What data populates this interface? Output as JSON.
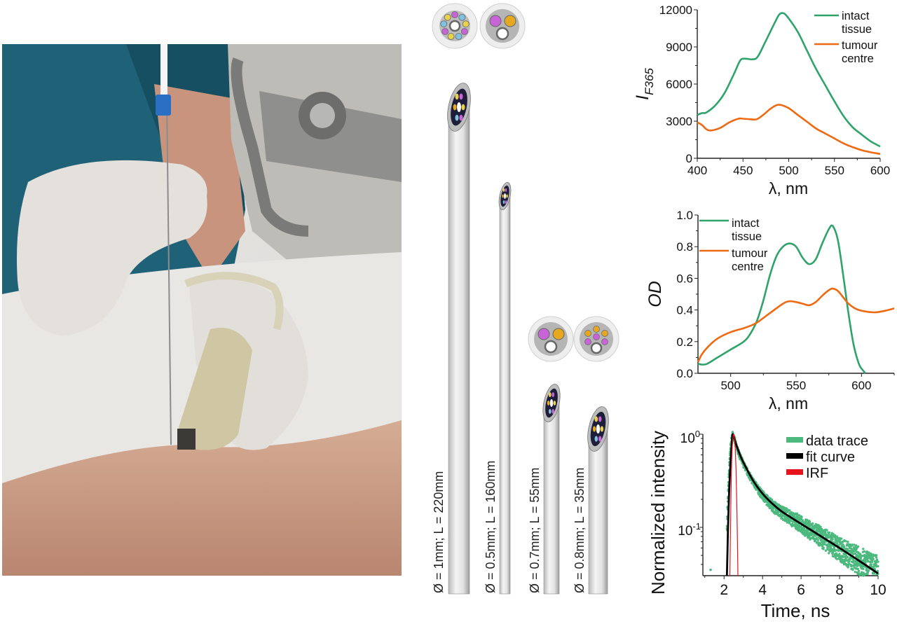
{
  "photo": {
    "description_icon": "clinical-photo"
  },
  "needles": {
    "items": [
      {
        "label": "Ø = 1mm; L = 220mm"
      },
      {
        "label": "Ø = 0.5mm; L = 160mm"
      },
      {
        "label": "Ø = 0.7mm; L = 55mm"
      },
      {
        "label": "Ø = 0.8mm; L = 35mm"
      }
    ],
    "colors": {
      "violet": "#c964d8",
      "yellow": "#e8d24a",
      "blue": "#7fc3de",
      "orange": "#e6a81e",
      "core": "#8e8e8e"
    }
  },
  "chart_data": [
    {
      "type": "line",
      "xlabel": "λ, nm",
      "ylabel": "I",
      "ylabel_subscript": "F365",
      "xlim": [
        400,
        600
      ],
      "ylim": [
        0,
        12000
      ],
      "xticks": [
        "400",
        "450",
        "500",
        "550",
        "600"
      ],
      "yticks": [
        "0",
        "3000",
        "6000",
        "9000",
        "12000"
      ],
      "grid": false,
      "legend": "top-right",
      "series": [
        {
          "name_lines": [
            "intact",
            "tissue"
          ],
          "color": "#2ea36a",
          "x": [
            400,
            405,
            410,
            420,
            430,
            440,
            447,
            452,
            460,
            466,
            475,
            485,
            490,
            495,
            500,
            510,
            520,
            530,
            540,
            550,
            560,
            570,
            580,
            590,
            600
          ],
          "y": [
            3500,
            3650,
            3700,
            4300,
            5300,
            6800,
            7900,
            8050,
            8000,
            8200,
            9500,
            11000,
            11650,
            11700,
            11300,
            10200,
            8700,
            7200,
            5900,
            4600,
            3400,
            2500,
            1900,
            1350,
            950
          ]
        },
        {
          "name_lines": [
            "tumour",
            "centre"
          ],
          "color": "#ee6a12",
          "x": [
            400,
            405,
            410,
            415,
            425,
            435,
            445,
            450,
            458,
            465,
            472,
            480,
            487,
            492,
            500,
            510,
            520,
            530,
            540,
            550,
            560,
            570,
            580,
            590,
            600
          ],
          "y": [
            2900,
            2700,
            2350,
            2250,
            2450,
            2900,
            3200,
            3200,
            3150,
            3150,
            3500,
            4000,
            4300,
            4300,
            4050,
            3500,
            2950,
            2400,
            2000,
            1600,
            1200,
            900,
            650,
            480,
            350
          ]
        }
      ]
    },
    {
      "type": "line",
      "xlabel": "λ, nm",
      "ylabel": "OD",
      "xlim": [
        475,
        625
      ],
      "ylim": [
        0,
        1.0
      ],
      "xticks": [
        "500",
        "550",
        "600"
      ],
      "yticks": [
        "0.0",
        "0.2",
        "0.4",
        "0.6",
        "0.8",
        "1.0"
      ],
      "grid": false,
      "legend": "top-left",
      "series": [
        {
          "name_lines": [
            "intact",
            "tissue"
          ],
          "color": "#2ea36a",
          "x": [
            475,
            478,
            482,
            490,
            500,
            510,
            515,
            520,
            525,
            530,
            535,
            540,
            545,
            550,
            555,
            560,
            565,
            570,
            575,
            578,
            582,
            586,
            590,
            594,
            598,
            601,
            603
          ],
          "y": [
            0.06,
            0.055,
            0.06,
            0.1,
            0.15,
            0.2,
            0.25,
            0.33,
            0.46,
            0.62,
            0.74,
            0.8,
            0.82,
            0.8,
            0.73,
            0.69,
            0.72,
            0.82,
            0.91,
            0.93,
            0.84,
            0.62,
            0.38,
            0.18,
            0.06,
            0.02,
            0.0
          ]
        },
        {
          "name_lines": [
            "tumour",
            "centre"
          ],
          "color": "#ee6a12",
          "x": [
            475,
            478,
            483,
            490,
            500,
            510,
            515,
            520,
            530,
            540,
            545,
            550,
            555,
            560,
            565,
            570,
            575,
            578,
            582,
            586,
            590,
            595,
            600,
            610,
            618,
            625
          ],
          "y": [
            0.07,
            0.12,
            0.17,
            0.22,
            0.26,
            0.285,
            0.3,
            0.32,
            0.38,
            0.44,
            0.455,
            0.45,
            0.44,
            0.43,
            0.45,
            0.49,
            0.525,
            0.535,
            0.52,
            0.48,
            0.44,
            0.41,
            0.395,
            0.385,
            0.395,
            0.41
          ]
        }
      ]
    },
    {
      "type": "scatter",
      "xlabel": "Time, ns",
      "ylabel": "Normalized intensity",
      "xlim": [
        0.9,
        10
      ],
      "ylim": [
        0.03,
        1.0
      ],
      "yscale": "log",
      "xticks": [
        "2",
        "4",
        "6",
        "8",
        "10"
      ],
      "yticks": [
        {
          "base": "10",
          "exp": "0"
        },
        {
          "base": "10",
          "exp": "-1"
        }
      ],
      "grid": false,
      "legend": "top-right",
      "series": [
        {
          "name": "data trace",
          "color": "#4cb97e",
          "kind": "scatter",
          "x": [
            1.3,
            2.15,
            2.2,
            2.25,
            2.3,
            2.35,
            2.4,
            2.45,
            2.5,
            2.6,
            2.7,
            2.8,
            3.0,
            3.2,
            3.5,
            3.8,
            4.0,
            4.3,
            4.6,
            5.0,
            5.4,
            5.8,
            6.2,
            6.6,
            7.0,
            7.5,
            8.0,
            8.5,
            9.0,
            9.5,
            10.0
          ],
          "y": [
            0.035,
            0.1,
            0.2,
            0.35,
            0.55,
            0.75,
            0.9,
            1.0,
            0.95,
            0.78,
            0.68,
            0.6,
            0.48,
            0.4,
            0.31,
            0.25,
            0.22,
            0.19,
            0.165,
            0.145,
            0.128,
            0.115,
            0.1,
            0.09,
            0.08,
            0.068,
            0.058,
            0.05,
            0.044,
            0.038,
            0.034
          ]
        },
        {
          "name": "fit curve",
          "color": "#000000",
          "kind": "line",
          "x": [
            2.15,
            2.2,
            2.25,
            2.3,
            2.35,
            2.4,
            2.45,
            2.6,
            2.8,
            3.0,
            3.5,
            4.0,
            4.5,
            5.0,
            6.0,
            7.0,
            8.0,
            9.0,
            10.0
          ],
          "y": [
            0.03,
            0.09,
            0.2,
            0.36,
            0.55,
            0.78,
            1.0,
            0.81,
            0.62,
            0.5,
            0.32,
            0.23,
            0.18,
            0.148,
            0.109,
            0.081,
            0.06,
            0.044,
            0.032
          ]
        },
        {
          "name": "IRF",
          "color": "#e8141b",
          "kind": "line",
          "x": [
            2.3,
            2.34,
            2.38,
            2.42,
            2.46,
            2.5,
            2.54,
            2.58,
            2.62,
            2.67,
            2.72
          ],
          "y": [
            0.03,
            0.12,
            0.4,
            0.7,
            0.92,
            1.0,
            0.9,
            0.7,
            0.42,
            0.15,
            0.03
          ]
        }
      ]
    }
  ]
}
